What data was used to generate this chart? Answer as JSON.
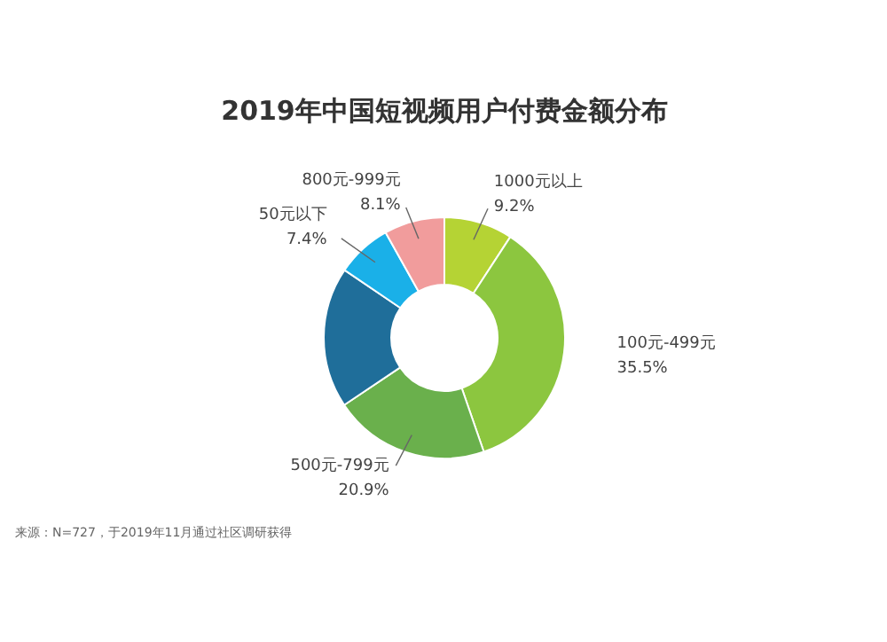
{
  "chart_data": {
    "type": "donut",
    "title": "2019年中国短视频用户付费金额分布",
    "categories": [
      "1000元以上",
      "100元-499元",
      "500元-799元",
      null,
      "50元以下",
      "800元-999元"
    ],
    "values": [
      9.2,
      35.5,
      20.9,
      18.9,
      7.4,
      8.1
    ],
    "value_labels": [
      "9.2%",
      "35.5%",
      "20.9%",
      null,
      "7.4%",
      "8.1%"
    ],
    "colors": [
      "#b5d334",
      "#8cc63f",
      "#6ab04c",
      "#1f6e9a",
      "#1ab0e8",
      "#f19c9c"
    ],
    "annotations": [
      "来源：N=727，于2019年11月通过社区调研获得"
    ]
  }
}
